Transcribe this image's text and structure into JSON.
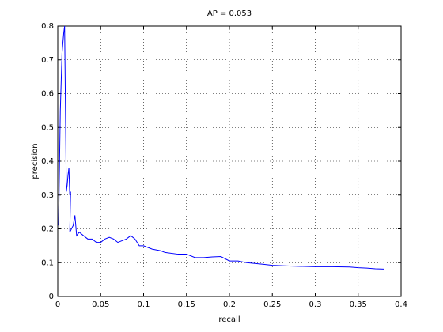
{
  "chart_data": {
    "type": "line",
    "title": "AP = 0.053",
    "x_label": "recall",
    "y_label": "precision",
    "x": [
      0.001,
      0.003,
      0.005,
      0.007,
      0.008,
      0.009,
      0.01,
      0.011,
      0.012,
      0.013,
      0.014,
      0.015,
      0.014,
      0.016,
      0.018,
      0.02,
      0.022,
      0.025,
      0.03,
      0.035,
      0.04,
      0.045,
      0.05,
      0.055,
      0.06,
      0.065,
      0.07,
      0.075,
      0.08,
      0.085,
      0.09,
      0.095,
      0.1,
      0.11,
      0.12,
      0.125,
      0.14,
      0.15,
      0.16,
      0.17,
      0.18,
      0.19,
      0.2,
      0.21,
      0.22,
      0.24,
      0.25,
      0.27,
      0.3,
      0.32,
      0.34,
      0.35,
      0.36,
      0.37,
      0.38
    ],
    "values": [
      0.21,
      0.55,
      0.72,
      0.78,
      0.8,
      0.55,
      0.31,
      0.33,
      0.36,
      0.38,
      0.3,
      0.31,
      0.19,
      0.2,
      0.21,
      0.24,
      0.18,
      0.19,
      0.18,
      0.17,
      0.17,
      0.16,
      0.16,
      0.17,
      0.175,
      0.17,
      0.16,
      0.165,
      0.17,
      0.18,
      0.17,
      0.15,
      0.15,
      0.14,
      0.135,
      0.13,
      0.125,
      0.125,
      0.115,
      0.115,
      0.117,
      0.118,
      0.105,
      0.105,
      0.1,
      0.095,
      0.092,
      0.09,
      0.088,
      0.088,
      0.087,
      0.085,
      0.084,
      0.082,
      0.081
    ],
    "color": "#0000ff",
    "xlim": [
      0,
      0.4
    ],
    "xticks": [
      0,
      0.05,
      0.1,
      0.15,
      0.2,
      0.25,
      0.3,
      0.35,
      0.4
    ],
    "ylim": [
      0,
      0.8
    ],
    "yticks": [
      0,
      0.1,
      0.2,
      0.3,
      0.4,
      0.5,
      0.6,
      0.7,
      0.8
    ],
    "grid": true
  }
}
